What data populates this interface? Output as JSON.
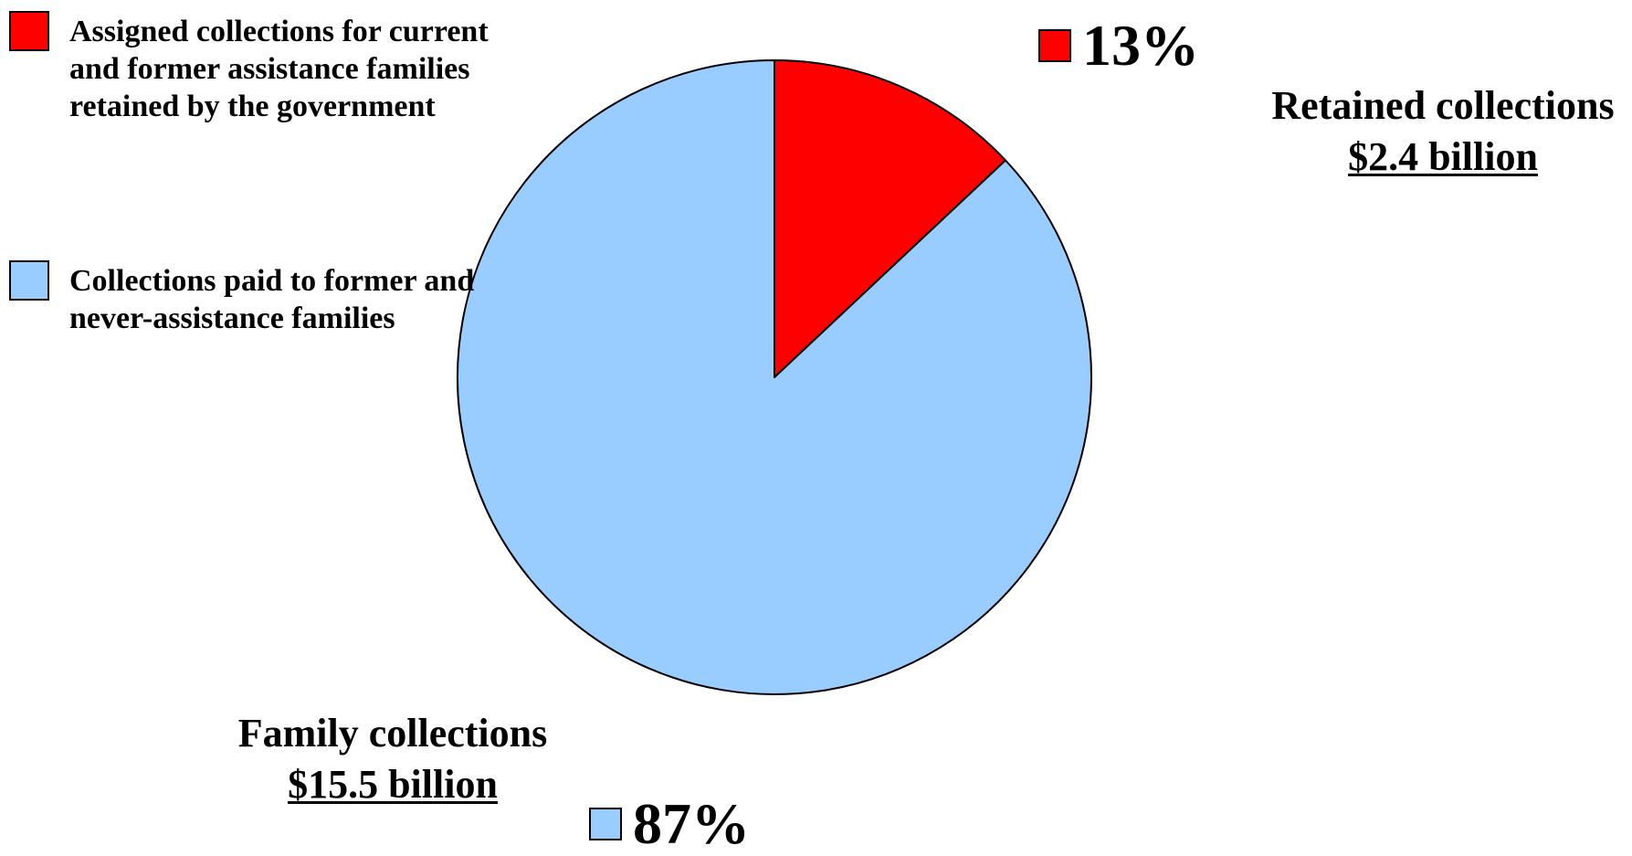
{
  "chart_data": {
    "type": "pie",
    "slices": [
      {
        "legend": "Assigned collections for current and former assistance families retained by the government",
        "label": "Retained collections",
        "amount": "$2.4 billion",
        "percent_text": "13%",
        "value": 13,
        "color": "#ff0000"
      },
      {
        "legend": "Collections paid to former and never-assistance families",
        "label": "Family collections",
        "amount": "$15.5 billion",
        "percent_text": "87%",
        "value": 87,
        "color": "#99ccff"
      }
    ],
    "start_angle": "top",
    "direction": "clockwise",
    "legend_placement": "top-left"
  }
}
